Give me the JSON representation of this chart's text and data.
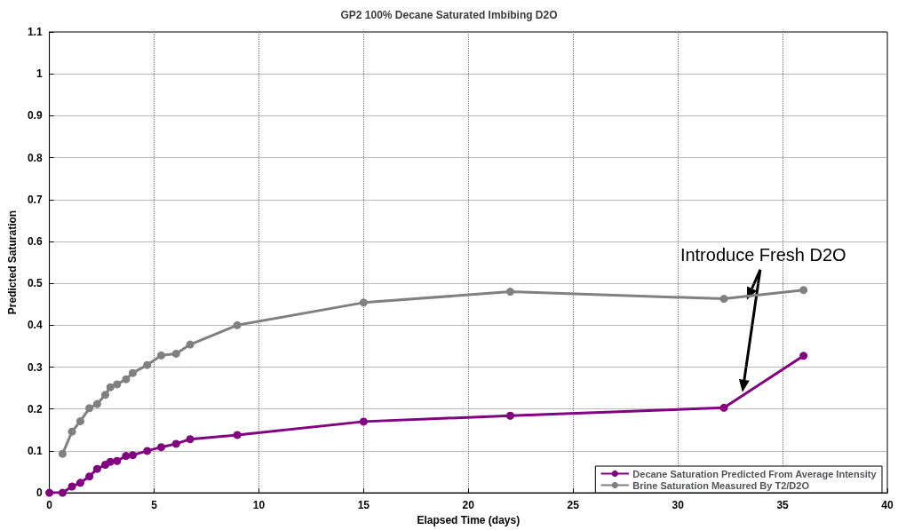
{
  "chart_data": {
    "type": "line",
    "title": "GP2 100% Decane Saturated Imbibing D2O",
    "xlabel": "Elapsed Time (days)",
    "ylabel": "Predicted Saturation",
    "annotations": [
      {
        "text": "Introduce Fresh D2O",
        "x": 33.3,
        "y": 0.47
      }
    ],
    "series": [
      {
        "name": "Decane Saturation Predicted From Average Intensity",
        "color": "#800080",
        "x": [
          0,
          0.63,
          1.08,
          1.48,
          1.91,
          2.28,
          2.67,
          2.91,
          3.23,
          3.66,
          3.98,
          4.67,
          5.34,
          6.05,
          6.72,
          8.97,
          15,
          22,
          32.2,
          36
        ],
        "values": [
          0,
          0,
          0.015,
          0.024,
          0.039,
          0.057,
          0.067,
          0.074,
          0.076,
          0.088,
          0.09,
          0.1,
          0.109,
          0.117,
          0.128,
          0.138,
          0.17,
          0.184,
          0.203,
          0.327
        ]
      },
      {
        "name": "Brine Saturation Measured By T2/D2O",
        "color": "#808080",
        "x": [
          0.63,
          1.08,
          1.48,
          1.91,
          2.28,
          2.67,
          2.91,
          3.23,
          3.66,
          3.98,
          4.67,
          5.34,
          6.05,
          6.72,
          8.97,
          15,
          22,
          32.2,
          36
        ],
        "values": [
          0.093,
          0.146,
          0.171,
          0.202,
          0.212,
          0.234,
          0.252,
          0.259,
          0.271,
          0.286,
          0.305,
          0.328,
          0.332,
          0.354,
          0.4,
          0.454,
          0.48,
          0.463,
          0.484
        ]
      }
    ],
    "xlim": [
      0,
      40
    ],
    "xticks": [
      0,
      5,
      10,
      15,
      20,
      25,
      30,
      35,
      40
    ],
    "ylim": [
      0,
      1.1
    ],
    "yticks": [
      0,
      0.1,
      0.2,
      0.3,
      0.4,
      0.5,
      0.6,
      0.7,
      0.8,
      0.9,
      1,
      1.1
    ],
    "grid": true,
    "legend": "bottom right",
    "marker": "circle",
    "line_style": "solid"
  }
}
